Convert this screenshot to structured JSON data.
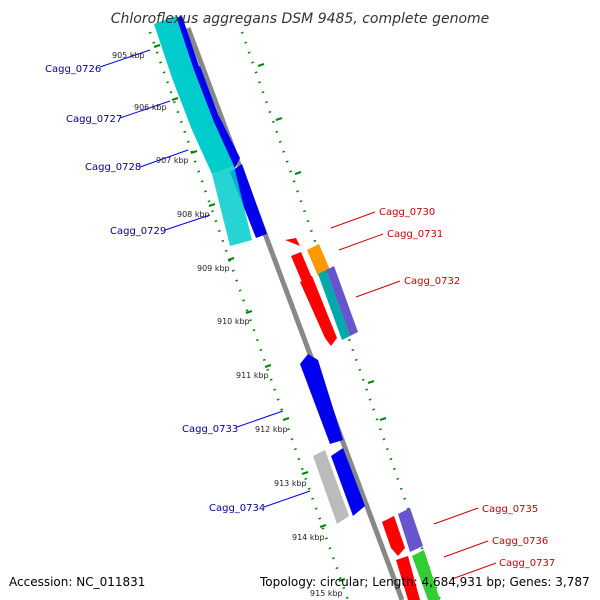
{
  "title": "Chloroflexus aggregans DSM 9485, complete genome",
  "footer": {
    "accession": "Accession: NC_011831",
    "topology": "Topology: circular; Length: 4,684,931 bp; Genes: 3,787"
  },
  "ticks": [
    "905 kbp",
    "906 kbp",
    "907 kbp",
    "908 kbp",
    "909 kbp",
    "910 kbp",
    "911 kbp",
    "912 kbp",
    "913 kbp",
    "914 kbp",
    "915 kbp"
  ],
  "genes_left": [
    "Cagg_0726",
    "Cagg_0727",
    "Cagg_0728",
    "Cagg_0729",
    "Cagg_0733",
    "Cagg_0734"
  ],
  "genes_right": [
    "Cagg_0730",
    "Cagg_0731",
    "Cagg_0732",
    "Cagg_0735",
    "Cagg_0736",
    "Cagg_0737"
  ],
  "colors": {
    "blue": "#0000ee",
    "cyan": "#00cccc",
    "red": "#ff0000",
    "orange": "#ff9900",
    "purple": "#6655cc",
    "green": "#33cc33",
    "gray": "#bbbbbb",
    "axis": "#888888",
    "dots": "#008800",
    "left_label": "#000099",
    "right_label": "#cc0000"
  }
}
